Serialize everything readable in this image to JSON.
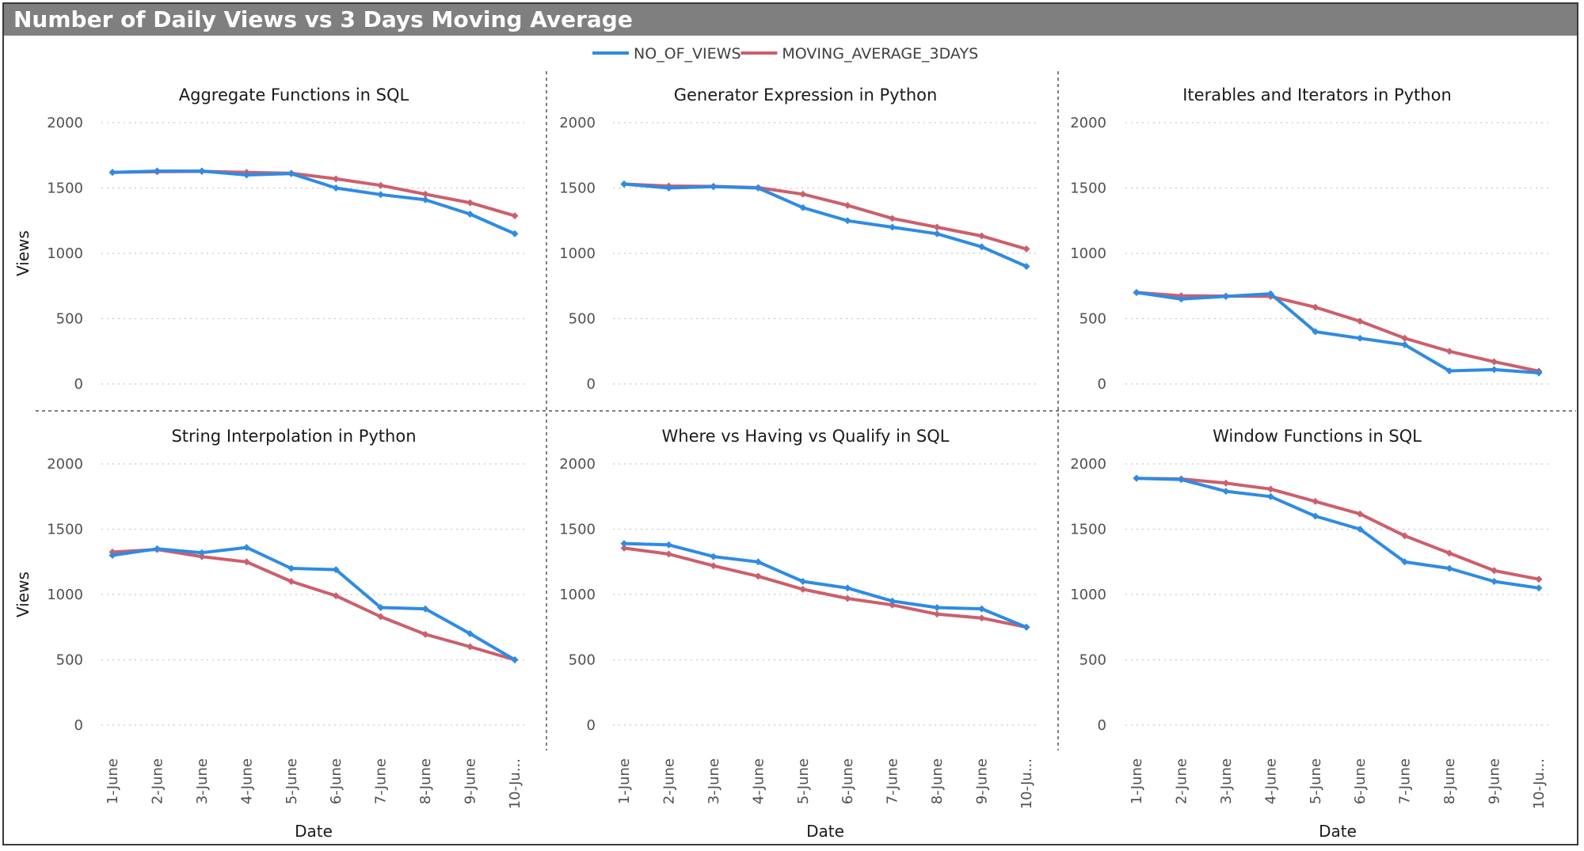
{
  "title": "Number of Daily Views vs 3 Days Moving Average",
  "colors": {
    "views": "#2f8be3",
    "moving_average": "#cc5f6c",
    "titlebar": "#7f7f7f"
  },
  "legend": {
    "placement": "top-center",
    "items": [
      "NO_OF_VIEWS",
      "MOVING_AVERAGE_3DAYS"
    ]
  },
  "chart_data": [
    {
      "type": "line",
      "title": "Aggregate Functions in SQL",
      "xlabel": "",
      "ylabel": "Views",
      "categories": [
        "1-June",
        "2-June",
        "3-June",
        "4-June",
        "5-June",
        "6-June",
        "7-June",
        "8-June",
        "9-June",
        "10-Ju..."
      ],
      "ylim": [
        0,
        2000
      ],
      "yticks": [
        0,
        500,
        1000,
        1500,
        2000
      ],
      "grid": true,
      "series": [
        {
          "name": "NO_OF_VIEWS",
          "values": [
            1620,
            1630,
            1630,
            1600,
            1610,
            1500,
            1450,
            1410,
            1300,
            1150
          ]
        },
        {
          "name": "MOVING_AVERAGE_3DAYS",
          "values": [
            1620,
            1625,
            1627,
            1620,
            1613,
            1570,
            1520,
            1453,
            1387,
            1287
          ]
        }
      ]
    },
    {
      "type": "line",
      "title": "Generator Expression in Python",
      "xlabel": "",
      "ylabel": "",
      "categories": [
        "1-June",
        "2-June",
        "3-June",
        "4-June",
        "5-June",
        "6-June",
        "7-June",
        "8-June",
        "9-June",
        "10-Ju..."
      ],
      "ylim": [
        0,
        2000
      ],
      "yticks": [
        0,
        500,
        1000,
        1500,
        2000
      ],
      "grid": true,
      "series": [
        {
          "name": "NO_OF_VIEWS",
          "values": [
            1530,
            1500,
            1510,
            1500,
            1350,
            1250,
            1200,
            1150,
            1050,
            900
          ]
        },
        {
          "name": "MOVING_AVERAGE_3DAYS",
          "values": [
            1530,
            1515,
            1513,
            1503,
            1453,
            1367,
            1267,
            1200,
            1133,
            1033
          ]
        }
      ]
    },
    {
      "type": "line",
      "title": "Iterables and Iterators in Python",
      "xlabel": "",
      "ylabel": "",
      "categories": [
        "1-June",
        "2-June",
        "3-June",
        "4-June",
        "5-June",
        "6-June",
        "7-June",
        "8-June",
        "9-June",
        "10-Ju..."
      ],
      "ylim": [
        0,
        2000
      ],
      "yticks": [
        0,
        500,
        1000,
        1500,
        2000
      ],
      "grid": true,
      "series": [
        {
          "name": "NO_OF_VIEWS",
          "values": [
            700,
            650,
            670,
            690,
            400,
            350,
            300,
            100,
            110,
            85
          ]
        },
        {
          "name": "MOVING_AVERAGE_3DAYS",
          "values": [
            700,
            675,
            673,
            670,
            587,
            480,
            350,
            250,
            170,
            98
          ]
        }
      ]
    },
    {
      "type": "line",
      "title": "String Interpolation in Python",
      "xlabel": "Date",
      "ylabel": "Views",
      "categories": [
        "1-June",
        "2-June",
        "3-June",
        "4-June",
        "5-June",
        "6-June",
        "7-June",
        "8-June",
        "9-June",
        "10-Ju..."
      ],
      "ylim": [
        0,
        2000
      ],
      "yticks": [
        0,
        500,
        1000,
        1500,
        2000
      ],
      "grid": true,
      "series": [
        {
          "name": "NO_OF_VIEWS",
          "values": [
            1300,
            1350,
            1320,
            1360,
            1200,
            1190,
            900,
            890,
            700,
            500
          ]
        },
        {
          "name": "MOVING_AVERAGE_3DAYS",
          "values": [
            1325,
            1345,
            1290,
            1250,
            1100,
            990,
            830,
            695,
            600,
            500
          ]
        }
      ]
    },
    {
      "type": "line",
      "title": "Where vs Having vs Qualify in SQL",
      "xlabel": "Date",
      "ylabel": "",
      "categories": [
        "1-June",
        "2-June",
        "3-June",
        "4-June",
        "5-June",
        "6-June",
        "7-June",
        "8-June",
        "9-June",
        "10-Ju..."
      ],
      "ylim": [
        0,
        2000
      ],
      "yticks": [
        0,
        500,
        1000,
        1500,
        2000
      ],
      "grid": true,
      "series": [
        {
          "name": "NO_OF_VIEWS",
          "values": [
            1390,
            1380,
            1290,
            1250,
            1100,
            1050,
            950,
            900,
            890,
            750
          ]
        },
        {
          "name": "MOVING_AVERAGE_3DAYS",
          "values": [
            1355,
            1310,
            1220,
            1140,
            1040,
            970,
            920,
            850,
            820,
            750
          ]
        }
      ]
    },
    {
      "type": "line",
      "title": "Window Functions in SQL",
      "xlabel": "Date",
      "ylabel": "",
      "categories": [
        "1-June",
        "2-June",
        "3-June",
        "4-June",
        "5-June",
        "6-June",
        "7-June",
        "8-June",
        "9-June",
        "10-Ju..."
      ],
      "ylim": [
        0,
        2000
      ],
      "yticks": [
        0,
        500,
        1000,
        1500,
        2000
      ],
      "grid": true,
      "series": [
        {
          "name": "NO_OF_VIEWS",
          "values": [
            1890,
            1880,
            1790,
            1750,
            1600,
            1500,
            1250,
            1200,
            1100,
            1050
          ]
        },
        {
          "name": "MOVING_AVERAGE_3DAYS",
          "values": [
            1890,
            1885,
            1853,
            1807,
            1713,
            1617,
            1450,
            1317,
            1183,
            1117
          ]
        }
      ]
    }
  ]
}
